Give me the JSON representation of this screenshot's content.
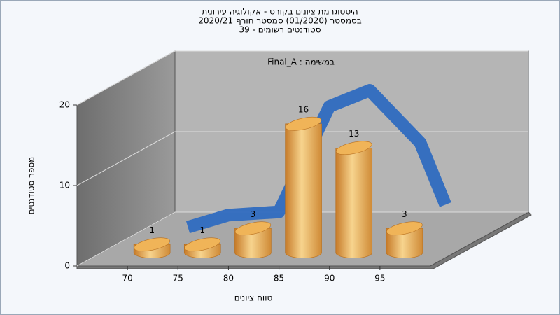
{
  "chart_data": {
    "type": "bar3d",
    "title_lines": [
      "היסטוגרמת ציונים בקורס - אקולוגיה עירונית",
      "בסמסטר  (01/2020)  סמסטר חורף 2020/21",
      "סטודנטים רשומים - 39"
    ],
    "annotation": "במשימה : Final_A",
    "x_label": "טווח ציונים",
    "y_label": "מספר סטודנטים",
    "x": [
      70,
      75,
      80,
      85,
      90,
      95
    ],
    "values": [
      1,
      1,
      3,
      16,
      13,
      3
    ],
    "color": "#e3a54a",
    "xlim": [
      65,
      100
    ],
    "xticks": [
      70,
      75,
      80,
      85,
      90,
      95
    ],
    "ylim": [
      0,
      20
    ],
    "yticks": [
      0,
      10,
      20
    ],
    "grid": true,
    "curve": {
      "color": "#2f6bc0",
      "x": [
        69,
        73,
        78,
        83,
        87,
        92,
        94.5
      ],
      "values": [
        0,
        1.5,
        1.9,
        15,
        17,
        10.5,
        2.8
      ]
    }
  }
}
